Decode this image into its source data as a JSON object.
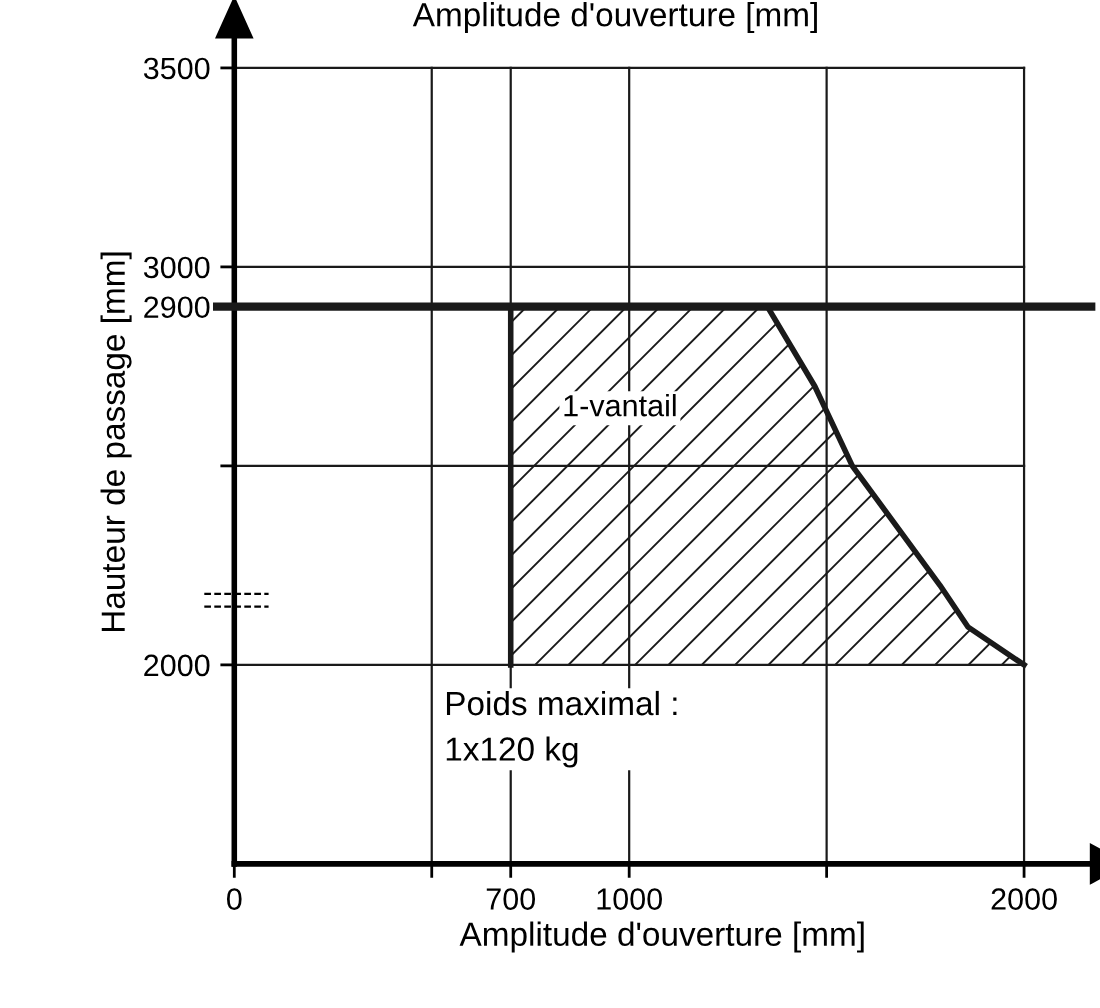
{
  "chart_data": {
    "type": "area",
    "x2label": "Amplitude d'ouverture [mm]",
    "xlabel": "Amplitude d'ouverture [mm]",
    "ylabel": "Hauteur de passage [mm]",
    "series": [
      {
        "color": "#1a1a1a",
        "x": [
          700,
          700,
          1350,
          1470,
          1565,
          1787,
          1858,
          2000
        ],
        "values": [
          2000,
          2900,
          2900,
          2700,
          2500,
          2200,
          2095,
          2000
        ]
      }
    ],
    "xlim": [
      0,
      2170
    ],
    "ylim": [
      1500,
      3620
    ],
    "xticks": [
      0,
      {
        "value": 500,
        "label": null
      },
      700,
      1000,
      {
        "value": 1500,
        "label": null
      },
      2000
    ],
    "yticks": [
      2000,
      {
        "value": 2500,
        "label": null
      },
      2900,
      3000,
      3500
    ],
    "grid": true,
    "ref_lines": [
      {
        "axis": "y",
        "value": 2900,
        "label": null
      }
    ],
    "annotations": [
      "1-vantail",
      "Poids maximal :\n1x120 kg"
    ]
  }
}
